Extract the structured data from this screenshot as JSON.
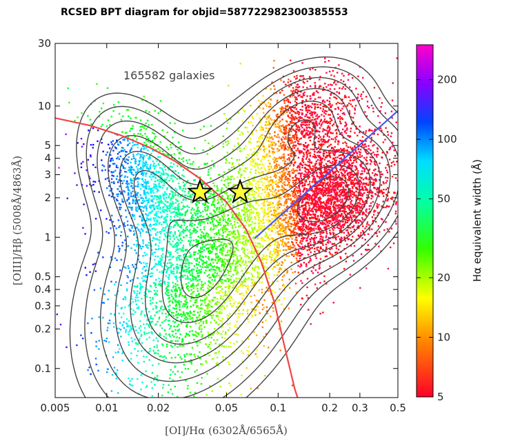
{
  "title": "RCSED BPT diagram for objid=587722982300385553",
  "chart_data": {
    "type": "scatter",
    "title": "RCSED BPT diagram for objid=587722982300385553",
    "xscale": "log",
    "yscale": "log",
    "xlim": [
      0.005,
      0.5
    ],
    "ylim": [
      0.06,
      30
    ],
    "xlabel": "[OI]/Hα (6302Å/6565Å)",
    "ylabel": "[OIII]/Hβ (5008Å/4863Å)",
    "xticks": [
      {
        "v": 0.005,
        "label": "0.005"
      },
      {
        "v": 0.01,
        "label": "0.01"
      },
      {
        "v": 0.02,
        "label": "0.02"
      },
      {
        "v": 0.05,
        "label": "0.05"
      },
      {
        "v": 0.1,
        "label": "0.1"
      },
      {
        "v": 0.2,
        "label": "0.2"
      },
      {
        "v": 0.3,
        "label": "0.3"
      },
      {
        "v": 0.5,
        "label": "0.5"
      }
    ],
    "yticks": [
      {
        "v": 0.1,
        "label": "0.1"
      },
      {
        "v": 0.2,
        "label": "0.2"
      },
      {
        "v": 0.3,
        "label": "0.3"
      },
      {
        "v": 0.4,
        "label": "0.4"
      },
      {
        "v": 0.5,
        "label": "0.5"
      },
      {
        "v": 1,
        "label": "1"
      },
      {
        "v": 2,
        "label": "2"
      },
      {
        "v": 3,
        "label": "3"
      },
      {
        "v": 4,
        "label": "4"
      },
      {
        "v": 5,
        "label": "5"
      },
      {
        "v": 10,
        "label": "10"
      },
      {
        "v": 30,
        "label": "30"
      }
    ],
    "annotation": "165582 galaxies",
    "colorbar": {
      "label": "Hα equivalent width (Å)",
      "scale": "log",
      "range": [
        5,
        300
      ],
      "ticks": [
        {
          "v": 5,
          "label": "5"
        },
        {
          "v": 10,
          "label": "10"
        },
        {
          "v": 20,
          "label": "20"
        },
        {
          "v": 50,
          "label": "50"
        },
        {
          "v": 100,
          "label": "100"
        },
        {
          "v": 200,
          "label": "200"
        }
      ],
      "colormap": "gist_rainbow"
    },
    "target_points": [
      {
        "name": "star",
        "x": 0.035,
        "y": 2.2
      },
      {
        "name": "star",
        "x": 0.06,
        "y": 2.2
      }
    ],
    "star_color": "#ffff33",
    "demarcation_lines": [
      {
        "name": "Kewley 2001 star-forming boundary",
        "color": "#ee4444",
        "x": [
          0.005,
          0.008,
          0.012,
          0.018,
          0.025,
          0.035,
          0.05,
          0.065,
          0.08,
          0.095,
          0.11,
          0.125,
          0.131
        ],
        "y": [
          8.1,
          7.1,
          6.0,
          4.8,
          3.8,
          2.8,
          1.85,
          1.15,
          0.64,
          0.32,
          0.14,
          0.07,
          0.058
        ]
      },
      {
        "name": "Seyfert-LINER division",
        "color": "#4455ee",
        "x": [
          0.073,
          0.5
        ],
        "y": [
          0.98,
          9.2
        ]
      }
    ],
    "density_clouds": [
      {
        "name": "star-forming branch",
        "x": 0.035,
        "y": 0.5,
        "sx": 0.26,
        "sy": 0.42,
        "rho": 0.35,
        "n": 2400
      },
      {
        "name": "high-ionization tail",
        "x": 0.018,
        "y": 2.2,
        "sx": 0.16,
        "sy": 0.28,
        "rho": -0.45,
        "n": 1300
      },
      {
        "name": "composite region",
        "x": 0.08,
        "y": 1.5,
        "sx": 0.18,
        "sy": 0.3,
        "rho": 0.1,
        "n": 1000
      },
      {
        "name": "AGN / LINER branch",
        "x": 0.2,
        "y": 2.0,
        "sx": 0.18,
        "sy": 0.24,
        "rho": 0.35,
        "n": 2700
      },
      {
        "name": "Seyfert branch",
        "x": 0.14,
        "y": 7.0,
        "sx": 0.17,
        "sy": 0.2,
        "rho": 0.3,
        "n": 1100
      }
    ],
    "contour_levels": [
      0.012,
      0.03,
      0.07,
      0.14,
      0.25,
      0.4,
      0.6,
      0.8
    ],
    "contour_color": "#444444"
  }
}
